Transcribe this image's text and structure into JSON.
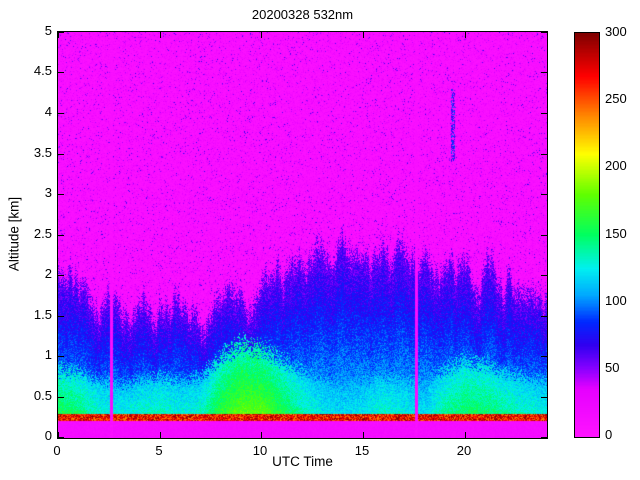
{
  "chart_data": {
    "type": "heatmap",
    "title": "20200328 532nm",
    "xlabel": "UTC Time",
    "ylabel": "Altitude [km]",
    "x_range": [
      0,
      24
    ],
    "y_range": [
      0,
      5
    ],
    "x_ticks": [
      0,
      5,
      10,
      15,
      20
    ],
    "y_ticks": [
      0,
      0.5,
      1,
      1.5,
      2,
      2.5,
      3,
      3.5,
      4,
      4.5,
      5
    ],
    "colorbar": {
      "min": 0,
      "max": 300,
      "ticks": [
        0,
        50,
        100,
        150,
        200,
        250,
        300
      ]
    },
    "colormap": [
      {
        "value": 0,
        "color": "#ff14ff"
      },
      {
        "value": 35,
        "color": "#e600ff"
      },
      {
        "value": 52,
        "color": "#8000ff"
      },
      {
        "value": 68,
        "color": "#3000f0"
      },
      {
        "value": 85,
        "color": "#0028ff"
      },
      {
        "value": 105,
        "color": "#00a8ff"
      },
      {
        "value": 125,
        "color": "#00f0f0"
      },
      {
        "value": 150,
        "color": "#00ff60"
      },
      {
        "value": 180,
        "color": "#60ff00"
      },
      {
        "value": 210,
        "color": "#ffff00"
      },
      {
        "value": 240,
        "color": "#ff8000"
      },
      {
        "value": 268,
        "color": "#ff0000"
      },
      {
        "value": 300,
        "color": "#800000"
      }
    ],
    "features": {
      "data_gap_utc_hours": [
        2.6,
        17.6
      ],
      "gap_halfwidth_hours": 0.09,
      "blind_zone_top_km": 0.2,
      "surface_return_alt_km": 0.25,
      "boundary_layer_top_km": [
        2.0,
        1.9,
        1.8,
        1.75,
        1.7,
        1.8,
        1.75,
        1.7,
        1.75,
        1.85,
        1.95,
        1.9,
        2.0,
        2.15,
        2.3,
        2.25,
        2.2,
        2.3,
        2.25,
        2.0,
        2.1,
        2.2,
        2.05,
        1.95,
        2.0
      ],
      "strong_layer_intensity": [
        0.8,
        0.7,
        0.5,
        0.45,
        0.5,
        0.55,
        0.45,
        0.5,
        0.85,
        1.0,
        1.0,
        0.8,
        0.55,
        0.4,
        0.35,
        0.4,
        0.5,
        0.45,
        0.35,
        0.6,
        0.7,
        0.7,
        0.6,
        0.5,
        0.45
      ],
      "strong_layer_top_km": [
        0.85,
        0.8,
        0.7,
        0.65,
        0.7,
        0.75,
        0.7,
        0.75,
        1.0,
        1.15,
        1.1,
        0.95,
        0.8,
        0.7,
        0.65,
        0.7,
        0.75,
        0.7,
        0.65,
        0.85,
        0.95,
        0.9,
        0.8,
        0.75,
        0.7
      ],
      "upper_blue_streak": {
        "utc": 19.4,
        "alt_km": [
          3.4,
          4.3
        ]
      }
    }
  }
}
